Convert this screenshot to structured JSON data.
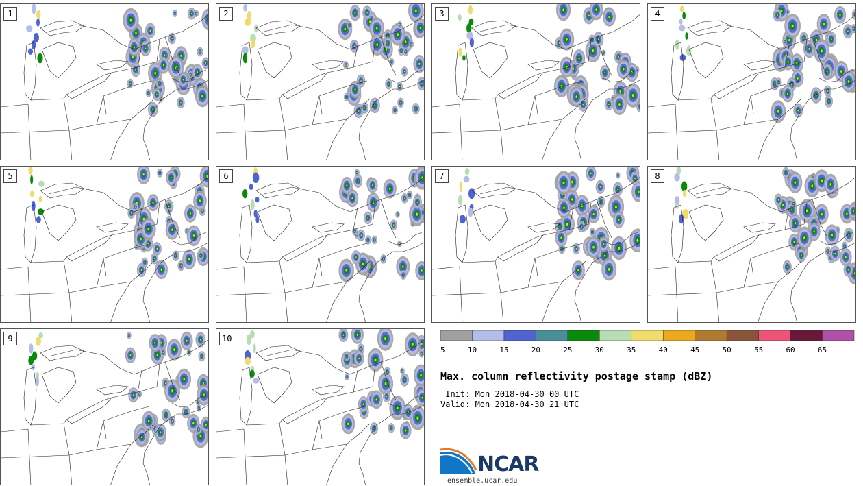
{
  "panels": [
    {
      "label": "1"
    },
    {
      "label": "2"
    },
    {
      "label": "3"
    },
    {
      "label": "4"
    },
    {
      "label": "5"
    },
    {
      "label": "6"
    },
    {
      "label": "7"
    },
    {
      "label": "8"
    },
    {
      "label": "9"
    },
    {
      "label": "10"
    }
  ],
  "colorbar": {
    "ticks": [
      "5",
      "10",
      "15",
      "20",
      "25",
      "30",
      "35",
      "40",
      "45",
      "50",
      "55",
      "60",
      "65"
    ],
    "colors": [
      "#a0a0a0",
      "#b4bde8",
      "#5063d0",
      "#4a8e98",
      "#0a8a0a",
      "#b8dcb4",
      "#f0dc6c",
      "#eca91e",
      "#b07a30",
      "#8a5438",
      "#ee5478",
      "#6a1838",
      "#b050a8"
    ]
  },
  "title": "Max. column reflectivity postage stamp (dBZ)",
  "init": " Init: Mon 2018-04-30 00 UTC",
  "valid": "Valid: Mon 2018-04-30 21 UTC",
  "logo": {
    "text": "NCAR",
    "site": "ensemble.ucar.edu"
  }
}
